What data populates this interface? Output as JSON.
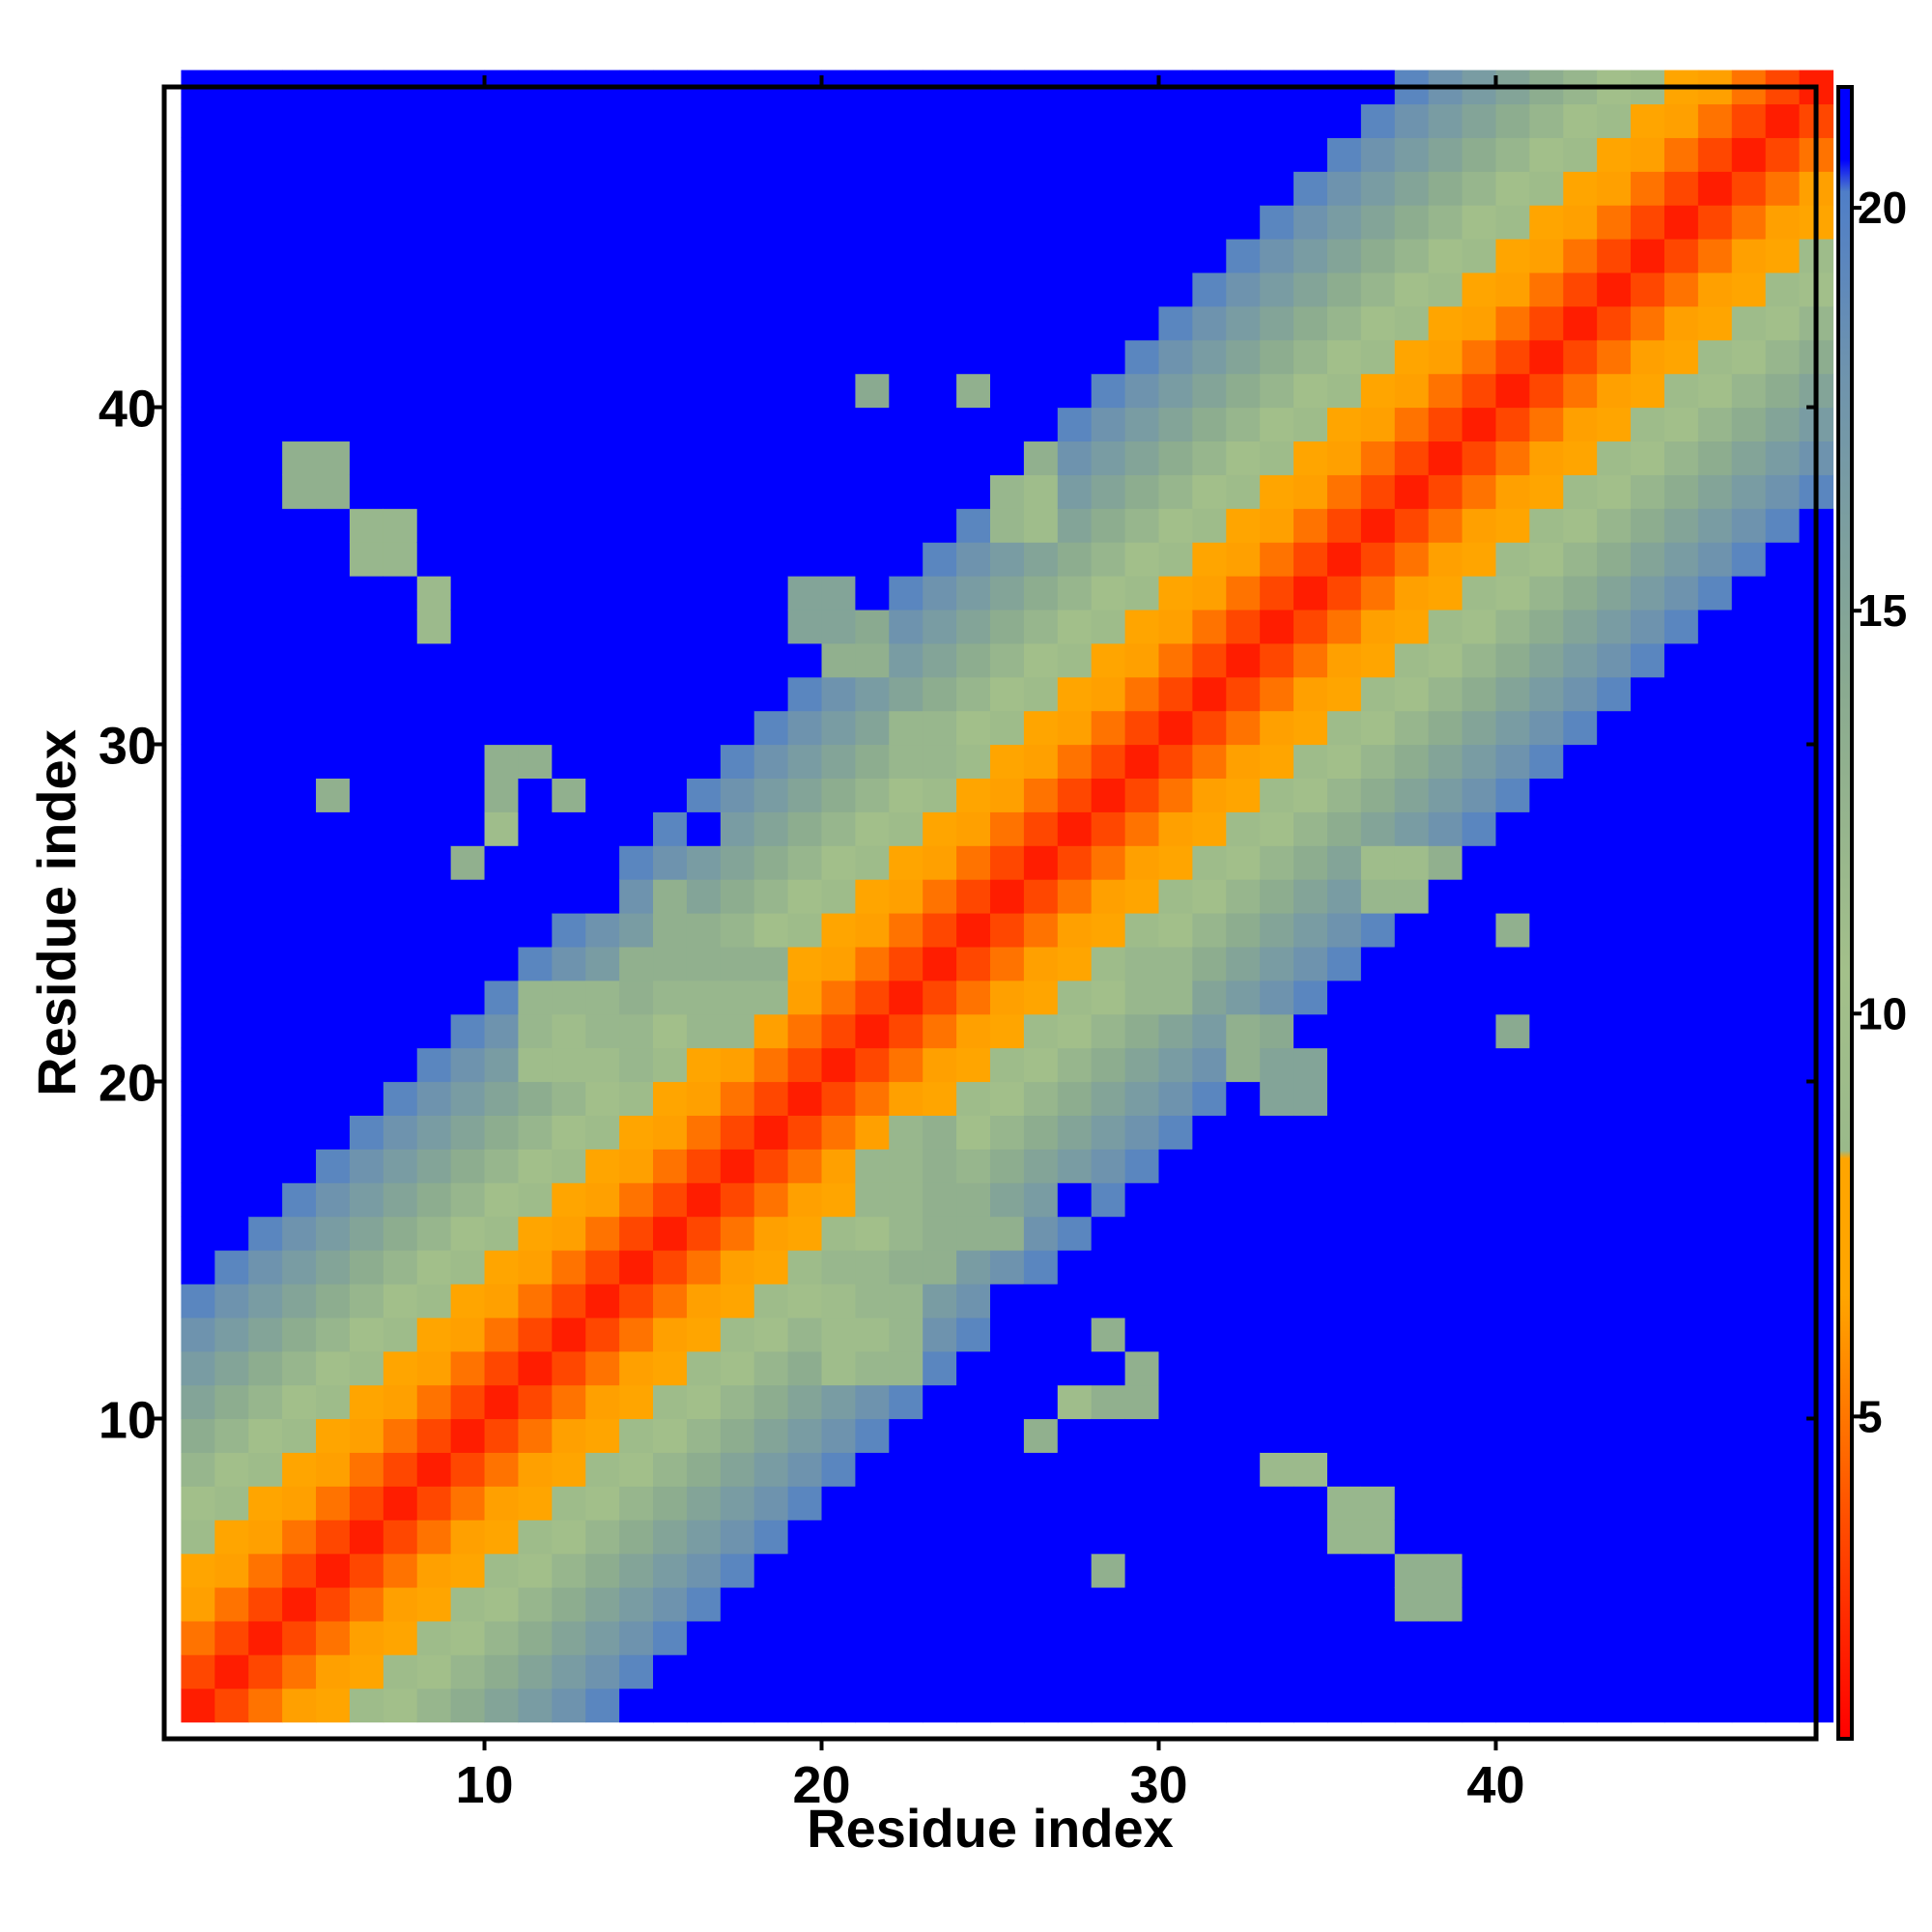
{
  "chart_data": {
    "type": "heatmap",
    "title": "",
    "xlabel": "Residue index",
    "ylabel": "Residue index",
    "n": 49,
    "xlim": [
      0.5,
      49.5
    ],
    "ylim": [
      0.5,
      49.5
    ],
    "x_ticks": [
      10,
      20,
      30,
      40
    ],
    "y_ticks": [
      10,
      20,
      30,
      40
    ],
    "x_tick_labels": [
      "10",
      "20",
      "30",
      "40"
    ],
    "y_tick_labels": [
      "10",
      "20",
      "30",
      "40"
    ],
    "colorbar": {
      "range": [
        1,
        21.5
      ],
      "ticks": [
        5,
        10,
        15,
        20
      ],
      "tick_labels": [
        "5",
        "10",
        "15",
        "20"
      ],
      "placement": "right",
      "stops": [
        {
          "value": 1.0,
          "color": "#ff0000"
        },
        {
          "value": 3.5,
          "color": "#ff4800"
        },
        {
          "value": 6.5,
          "color": "#ffa500"
        },
        {
          "value": 8.2,
          "color": "#ffa500"
        },
        {
          "value": 8.3,
          "color": "#9ab98a"
        },
        {
          "value": 10.5,
          "color": "#a3c08a"
        },
        {
          "value": 14.0,
          "color": "#8aaa90"
        },
        {
          "value": 18.0,
          "color": "#6e93ae"
        },
        {
          "value": 20.2,
          "color": "#4f7ec8"
        },
        {
          "value": 20.6,
          "color": "#0000ff"
        },
        {
          "value": 21.5,
          "color": "#0000ff"
        }
      ]
    },
    "value_rule": "value(i,j) = 2 + 1.45*|i-j| for |i-j|<=13, otherwise 21.5 (no contact); symmetric matrix, residues 1-49",
    "extra_contacts": [
      [
        4,
        37,
        13
      ],
      [
        4,
        38,
        13
      ],
      [
        5,
        37,
        13
      ],
      [
        5,
        38,
        13
      ],
      [
        6,
        35,
        12
      ],
      [
        6,
        36,
        12
      ],
      [
        7,
        35,
        12
      ],
      [
        7,
        36,
        12
      ],
      [
        8,
        33,
        11.5
      ],
      [
        8,
        34,
        11.5
      ],
      [
        5,
        28,
        13
      ],
      [
        9,
        26,
        13
      ],
      [
        10,
        27,
        11
      ],
      [
        14,
        23,
        13
      ],
      [
        15,
        23,
        13
      ],
      [
        16,
        21,
        12
      ],
      [
        17,
        21,
        12
      ],
      [
        11,
        20,
        11
      ],
      [
        11,
        21,
        12
      ],
      [
        12,
        20,
        11
      ],
      [
        12,
        21,
        11
      ],
      [
        13,
        20,
        11
      ],
      [
        13,
        21,
        12
      ],
      [
        14,
        20,
        12
      ],
      [
        14,
        21,
        12
      ],
      [
        11,
        22,
        12
      ],
      [
        12,
        22,
        12
      ],
      [
        13,
        22,
        12
      ],
      [
        14,
        22,
        13
      ],
      [
        15,
        22,
        12
      ],
      [
        16,
        22,
        12
      ],
      [
        17,
        22,
        12
      ],
      [
        17,
        23,
        13
      ],
      [
        18,
        22,
        12
      ],
      [
        18,
        23,
        13
      ],
      [
        16,
        23,
        13
      ],
      [
        10,
        28,
        13
      ],
      [
        10,
        29,
        13
      ],
      [
        11,
        29,
        13
      ],
      [
        12,
        28,
        13
      ],
      [
        15,
        24,
        13
      ],
      [
        15,
        25,
        13
      ],
      [
        16,
        24,
        13
      ],
      [
        19,
        33,
        15
      ],
      [
        19,
        34,
        15
      ],
      [
        20,
        33,
        15
      ],
      [
        20,
        34,
        15
      ],
      [
        20,
        32,
        13
      ],
      [
        21,
        32,
        13
      ],
      [
        21,
        33,
        14
      ],
      [
        26,
        38,
        13
      ],
      [
        24,
        40,
        13
      ],
      [
        21,
        40,
        14
      ],
      [
        25,
        36,
        12
      ],
      [
        25,
        37,
        12
      ],
      [
        26,
        36,
        11
      ],
      [
        26,
        37,
        11
      ],
      [
        22,
        29,
        12
      ],
      [
        23,
        29,
        12
      ],
      [
        22,
        30,
        12
      ],
      [
        23,
        30,
        12
      ]
    ],
    "holes": [
      [
        16,
        33
      ],
      [
        17,
        33
      ],
      [
        12,
        25
      ],
      [
        10,
        30
      ],
      [
        12,
        32
      ],
      [
        16,
        37
      ],
      [
        16,
        27
      ],
      [
        13,
        25
      ]
    ]
  }
}
